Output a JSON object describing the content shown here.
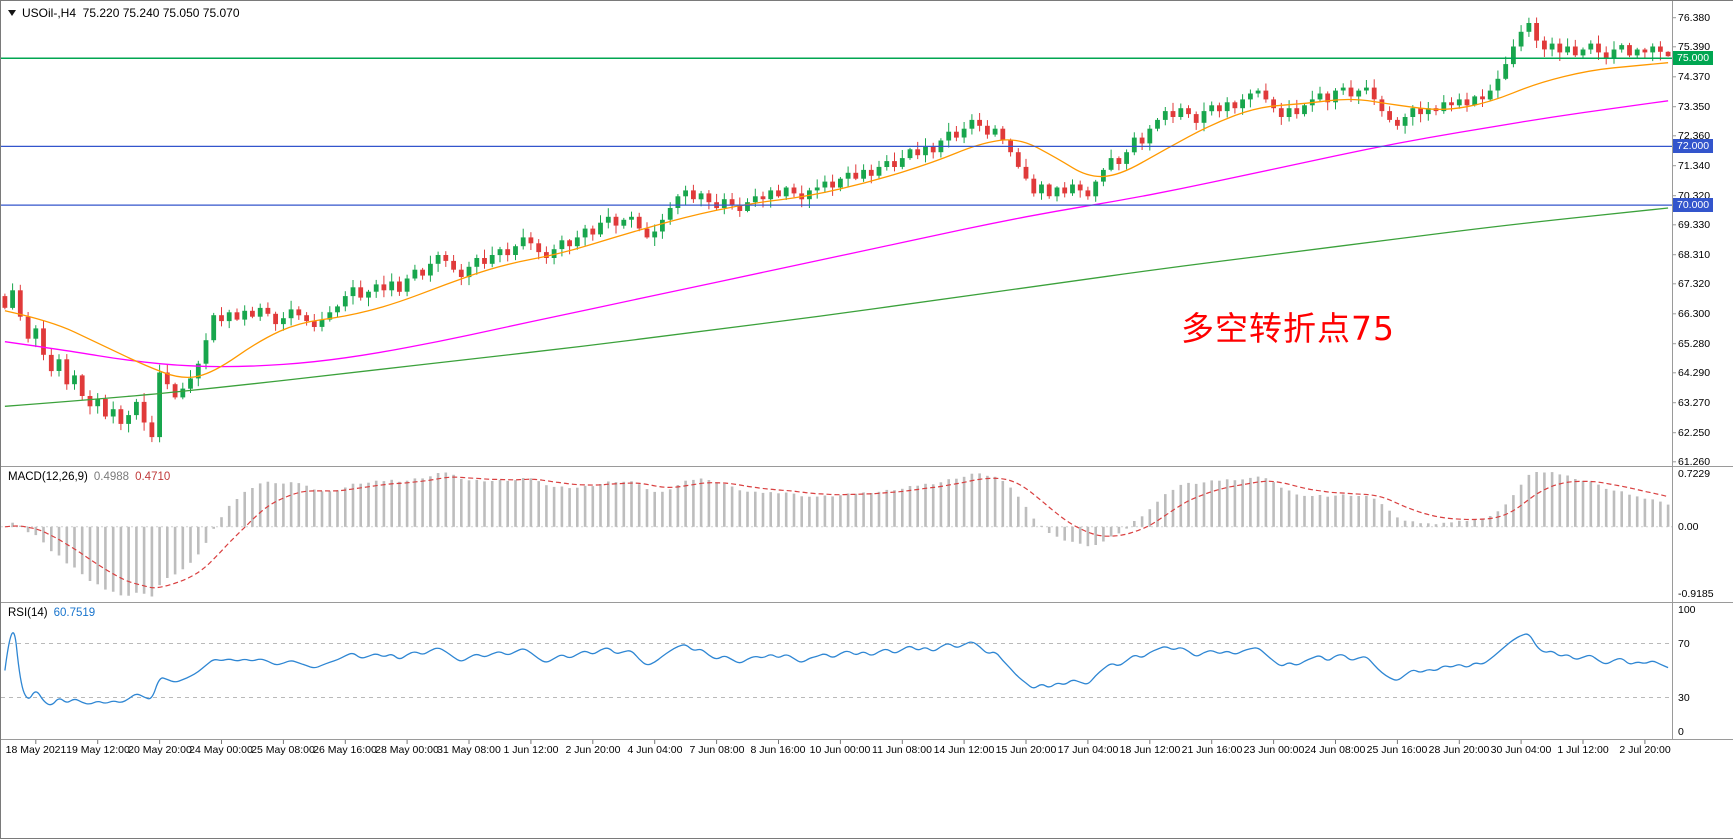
{
  "header": {
    "quote_line": "USOil-,H4  75.220 75.240 75.050 75.070"
  },
  "annotation": {
    "text": "多空转折点75",
    "color": "#FF0000"
  },
  "chart_data": {
    "type": "candlestick",
    "symbol": "USOil-",
    "timeframe": "H4",
    "quote": {
      "open": "75.220",
      "high": "75.240",
      "low": "75.050",
      "close": "75.070"
    },
    "price_range": [
      61.15,
      76.95
    ],
    "price_axis_ticks": [
      "76.380",
      "75.390",
      "74.370",
      "73.350",
      "72.360",
      "71.340",
      "70.320",
      "69.330",
      "68.310",
      "67.320",
      "66.300",
      "65.280",
      "64.290",
      "63.270",
      "62.250",
      "61.260"
    ],
    "time_labels": [
      "18 May 2021",
      "19 May 12:00",
      "20 May 20:00",
      "24 May 00:00",
      "25 May 08:00",
      "26 May 16:00",
      "28 May 00:00",
      "31 May 08:00",
      "1 Jun 12:00",
      "2 Jun 20:00",
      "4 Jun 04:00",
      "7 Jun 08:00",
      "8 Jun 16:00",
      "10 Jun 00:00",
      "11 Jun 08:00",
      "14 Jun 12:00",
      "15 Jun 20:00",
      "17 Jun 04:00",
      "18 Jun 12:00",
      "21 Jun 16:00",
      "23 Jun 00:00",
      "24 Jun 08:00",
      "25 Jun 16:00",
      "28 Jun 20:00",
      "30 Jun 04:00",
      "1 Jul 12:00",
      "2 Jul 20:00"
    ],
    "first_open": 66.9,
    "closes": [
      66.5,
      67.1,
      66.2,
      65.45,
      65.8,
      64.9,
      64.35,
      64.75,
      63.9,
      64.2,
      63.5,
      63.15,
      63.4,
      62.8,
      63.05,
      62.55,
      62.85,
      63.3,
      62.6,
      62.1,
      64.3,
      63.9,
      63.45,
      63.75,
      64.1,
      64.6,
      65.4,
      66.25,
      66.05,
      66.35,
      66.1,
      66.4,
      66.2,
      66.5,
      66.3,
      65.95,
      66.15,
      66.45,
      66.25,
      66.05,
      65.85,
      66.1,
      66.35,
      66.55,
      66.9,
      67.2,
      66.85,
      67.05,
      67.3,
      67.1,
      67.4,
      67.05,
      67.5,
      67.8,
      67.6,
      68.0,
      68.3,
      68.1,
      67.8,
      67.55,
      67.9,
      68.2,
      68.0,
      68.3,
      68.5,
      68.3,
      68.6,
      68.9,
      68.7,
      68.4,
      68.2,
      68.5,
      68.8,
      68.6,
      68.9,
      69.2,
      69.0,
      69.4,
      69.6,
      69.3,
      69.5,
      69.6,
      69.2,
      68.9,
      69.1,
      69.5,
      69.9,
      70.3,
      70.5,
      70.2,
      70.4,
      70.1,
      69.9,
      70.2,
      70.0,
      69.8,
      70.1,
      70.3,
      70.2,
      70.5,
      70.3,
      70.6,
      70.4,
      70.2,
      70.5,
      70.6,
      70.8,
      70.6,
      70.9,
      71.1,
      70.9,
      71.2,
      71.0,
      71.3,
      71.5,
      71.3,
      71.6,
      71.9,
      71.7,
      72.0,
      71.8,
      72.2,
      72.5,
      72.3,
      72.6,
      72.9,
      72.7,
      72.4,
      72.6,
      72.2,
      71.8,
      71.3,
      70.9,
      70.4,
      70.7,
      70.3,
      70.6,
      70.4,
      70.7,
      70.5,
      70.3,
      70.8,
      71.2,
      71.6,
      71.4,
      71.8,
      72.3,
      72.1,
      72.6,
      72.9,
      73.2,
      73.0,
      73.3,
      73.1,
      72.8,
      73.2,
      73.4,
      73.2,
      73.5,
      73.3,
      73.6,
      73.8,
      73.9,
      73.6,
      73.3,
      73.0,
      73.3,
      73.1,
      73.4,
      73.6,
      73.8,
      73.5,
      73.9,
      74.0,
      73.7,
      73.9,
      74.0,
      73.6,
      73.2,
      72.9,
      72.7,
      73.0,
      73.3,
      73.1,
      73.3,
      73.2,
      73.5,
      73.4,
      73.6,
      73.4,
      73.7,
      73.6,
      73.9,
      74.3,
      74.8,
      75.4,
      75.9,
      76.2,
      75.6,
      75.3,
      75.5,
      75.2,
      75.4,
      75.1,
      75.3,
      75.5,
      75.2,
      75.0,
      75.3,
      75.45,
      75.1,
      75.3,
      75.2,
      75.4,
      75.22,
      75.07
    ],
    "hlines": [
      {
        "price": 75.0,
        "label": "75.000",
        "color": "#00A651"
      },
      {
        "price": 72.0,
        "label": "72.000",
        "color": "#3355CC"
      },
      {
        "price": 70.0,
        "label": "70.000",
        "color": "#3355CC"
      }
    ],
    "ma_fast": {
      "color": "#FF9900",
      "points": [
        [
          0,
          66.4
        ],
        [
          6,
          66.05
        ],
        [
          12,
          65.3
        ],
        [
          18,
          64.55
        ],
        [
          23,
          64.05
        ],
        [
          27,
          64.3
        ],
        [
          33,
          65.4
        ],
        [
          38,
          66.0
        ],
        [
          44,
          66.2
        ],
        [
          50,
          66.6
        ],
        [
          57,
          67.3
        ],
        [
          64,
          67.95
        ],
        [
          72,
          68.35
        ],
        [
          80,
          69.0
        ],
        [
          88,
          69.6
        ],
        [
          96,
          70.05
        ],
        [
          104,
          70.3
        ],
        [
          112,
          70.8
        ],
        [
          120,
          71.45
        ],
        [
          126,
          72.1
        ],
        [
          131,
          72.3
        ],
        [
          136,
          71.6
        ],
        [
          140,
          70.95
        ],
        [
          144,
          71.0
        ],
        [
          150,
          71.9
        ],
        [
          156,
          72.75
        ],
        [
          162,
          73.35
        ],
        [
          168,
          73.45
        ],
        [
          174,
          73.65
        ],
        [
          180,
          73.4
        ],
        [
          186,
          73.2
        ],
        [
          192,
          73.5
        ],
        [
          198,
          74.15
        ],
        [
          205,
          74.6
        ],
        [
          211,
          74.75
        ],
        [
          215,
          74.85
        ]
      ]
    },
    "ma_mid": {
      "color": "#FF00FF",
      "points": [
        [
          0,
          65.35
        ],
        [
          8,
          65.05
        ],
        [
          16,
          64.7
        ],
        [
          24,
          64.5
        ],
        [
          32,
          64.5
        ],
        [
          40,
          64.65
        ],
        [
          48,
          64.95
        ],
        [
          56,
          65.35
        ],
        [
          64,
          65.8
        ],
        [
          72,
          66.25
        ],
        [
          80,
          66.7
        ],
        [
          88,
          67.15
        ],
        [
          96,
          67.6
        ],
        [
          104,
          68.05
        ],
        [
          112,
          68.5
        ],
        [
          120,
          68.95
        ],
        [
          128,
          69.4
        ],
        [
          136,
          69.8
        ],
        [
          144,
          70.15
        ],
        [
          152,
          70.55
        ],
        [
          160,
          71.0
        ],
        [
          168,
          71.45
        ],
        [
          176,
          71.9
        ],
        [
          184,
          72.3
        ],
        [
          192,
          72.65
        ],
        [
          200,
          73.0
        ],
        [
          208,
          73.3
        ],
        [
          215,
          73.55
        ]
      ]
    },
    "ma_slow": {
      "color": "#3BA13B",
      "points": [
        [
          0,
          63.15
        ],
        [
          15,
          63.45
        ],
        [
          30,
          63.85
        ],
        [
          45,
          64.3
        ],
        [
          60,
          64.75
        ],
        [
          75,
          65.2
        ],
        [
          90,
          65.7
        ],
        [
          105,
          66.2
        ],
        [
          120,
          66.75
        ],
        [
          135,
          67.3
        ],
        [
          150,
          67.85
        ],
        [
          165,
          68.35
        ],
        [
          180,
          68.85
        ],
        [
          195,
          69.35
        ],
        [
          215,
          69.9
        ]
      ]
    },
    "macd": {
      "name": "MACD(12,26,9)",
      "value_main": "0.4988",
      "value_signal": "0.4710",
      "params": [
        12,
        26,
        9
      ],
      "axis": [
        {
          "label": "0.7229",
          "value": 0.7229
        },
        {
          "label": "0.00",
          "value": 0
        },
        {
          "label": "-0.9185",
          "value": -0.9185
        }
      ]
    },
    "rsi": {
      "name": "RSI(14)",
      "value": "60.7519",
      "period": 14,
      "levels": [
        70,
        30
      ],
      "axis": [
        {
          "label": "100",
          "value": 100
        },
        {
          "label": "70",
          "value": 70
        },
        {
          "label": "30",
          "value": 30
        },
        {
          "label": "0",
          "value": 0
        }
      ]
    },
    "colors": {
      "up": "#18A64D",
      "down": "#E03A3A",
      "macd_hist": "#BDBDBD",
      "macd_signal": "#D94040",
      "rsi_line": "#2E86D3",
      "rsi_levels": "#B9B9B9"
    }
  }
}
